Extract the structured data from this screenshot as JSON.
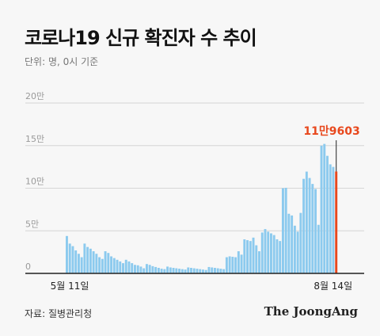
{
  "title": "코로나19 신규 확진자 수 추이",
  "unit_note": "단위: 명, 0시 기준",
  "source": "자료: 질병관리청",
  "brand": "The JoongAng",
  "colors": {
    "bar": "#8ccaee",
    "highlight": "#e8481d",
    "grid": "#d6d6d6",
    "axis": "#222222",
    "tick_text": "#9a9a9a",
    "background": "#f7f7f7"
  },
  "chart_data": {
    "type": "bar",
    "title": "코로나19 신규 확진자 수 추이",
    "ylim": [
      0,
      200000
    ],
    "yticks": [
      {
        "value": 0,
        "label": "0"
      },
      {
        "value": 50000,
        "label": "5만"
      },
      {
        "value": 100000,
        "label": "10만"
      },
      {
        "value": 150000,
        "label": "15만"
      },
      {
        "value": 200000,
        "label": "20만"
      }
    ],
    "x_start_label": "5월 11일",
    "x_end_label": "8월 14일",
    "grid": true,
    "highlight_label": "11만9603",
    "values": [
      43900,
      35000,
      32000,
      27000,
      23000,
      19000,
      35000,
      31000,
      29000,
      26000,
      23000,
      19000,
      17000,
      26000,
      24000,
      20000,
      18000,
      16000,
      14000,
      12000,
      16000,
      14000,
      12000,
      10000,
      9500,
      8000,
      6000,
      11000,
      10000,
      8500,
      7500,
      6500,
      5500,
      5000,
      8000,
      7000,
      6500,
      6000,
      5500,
      5000,
      4500,
      7000,
      6500,
      6000,
      5500,
      5000,
      4500,
      4000,
      7500,
      7000,
      6500,
      6000,
      5500,
      5000,
      19000,
      20000,
      19500,
      19000,
      26000,
      22000,
      40000,
      39000,
      38000,
      42000,
      33000,
      26000,
      48000,
      52000,
      49000,
      47000,
      45000,
      40000,
      38000,
      100000,
      100500,
      70000,
      68000,
      56000,
      49000,
      71000,
      111000,
      119500,
      112000,
      105000,
      99000,
      57000,
      149900,
      152000,
      138000,
      128000,
      125000,
      119603
    ]
  }
}
